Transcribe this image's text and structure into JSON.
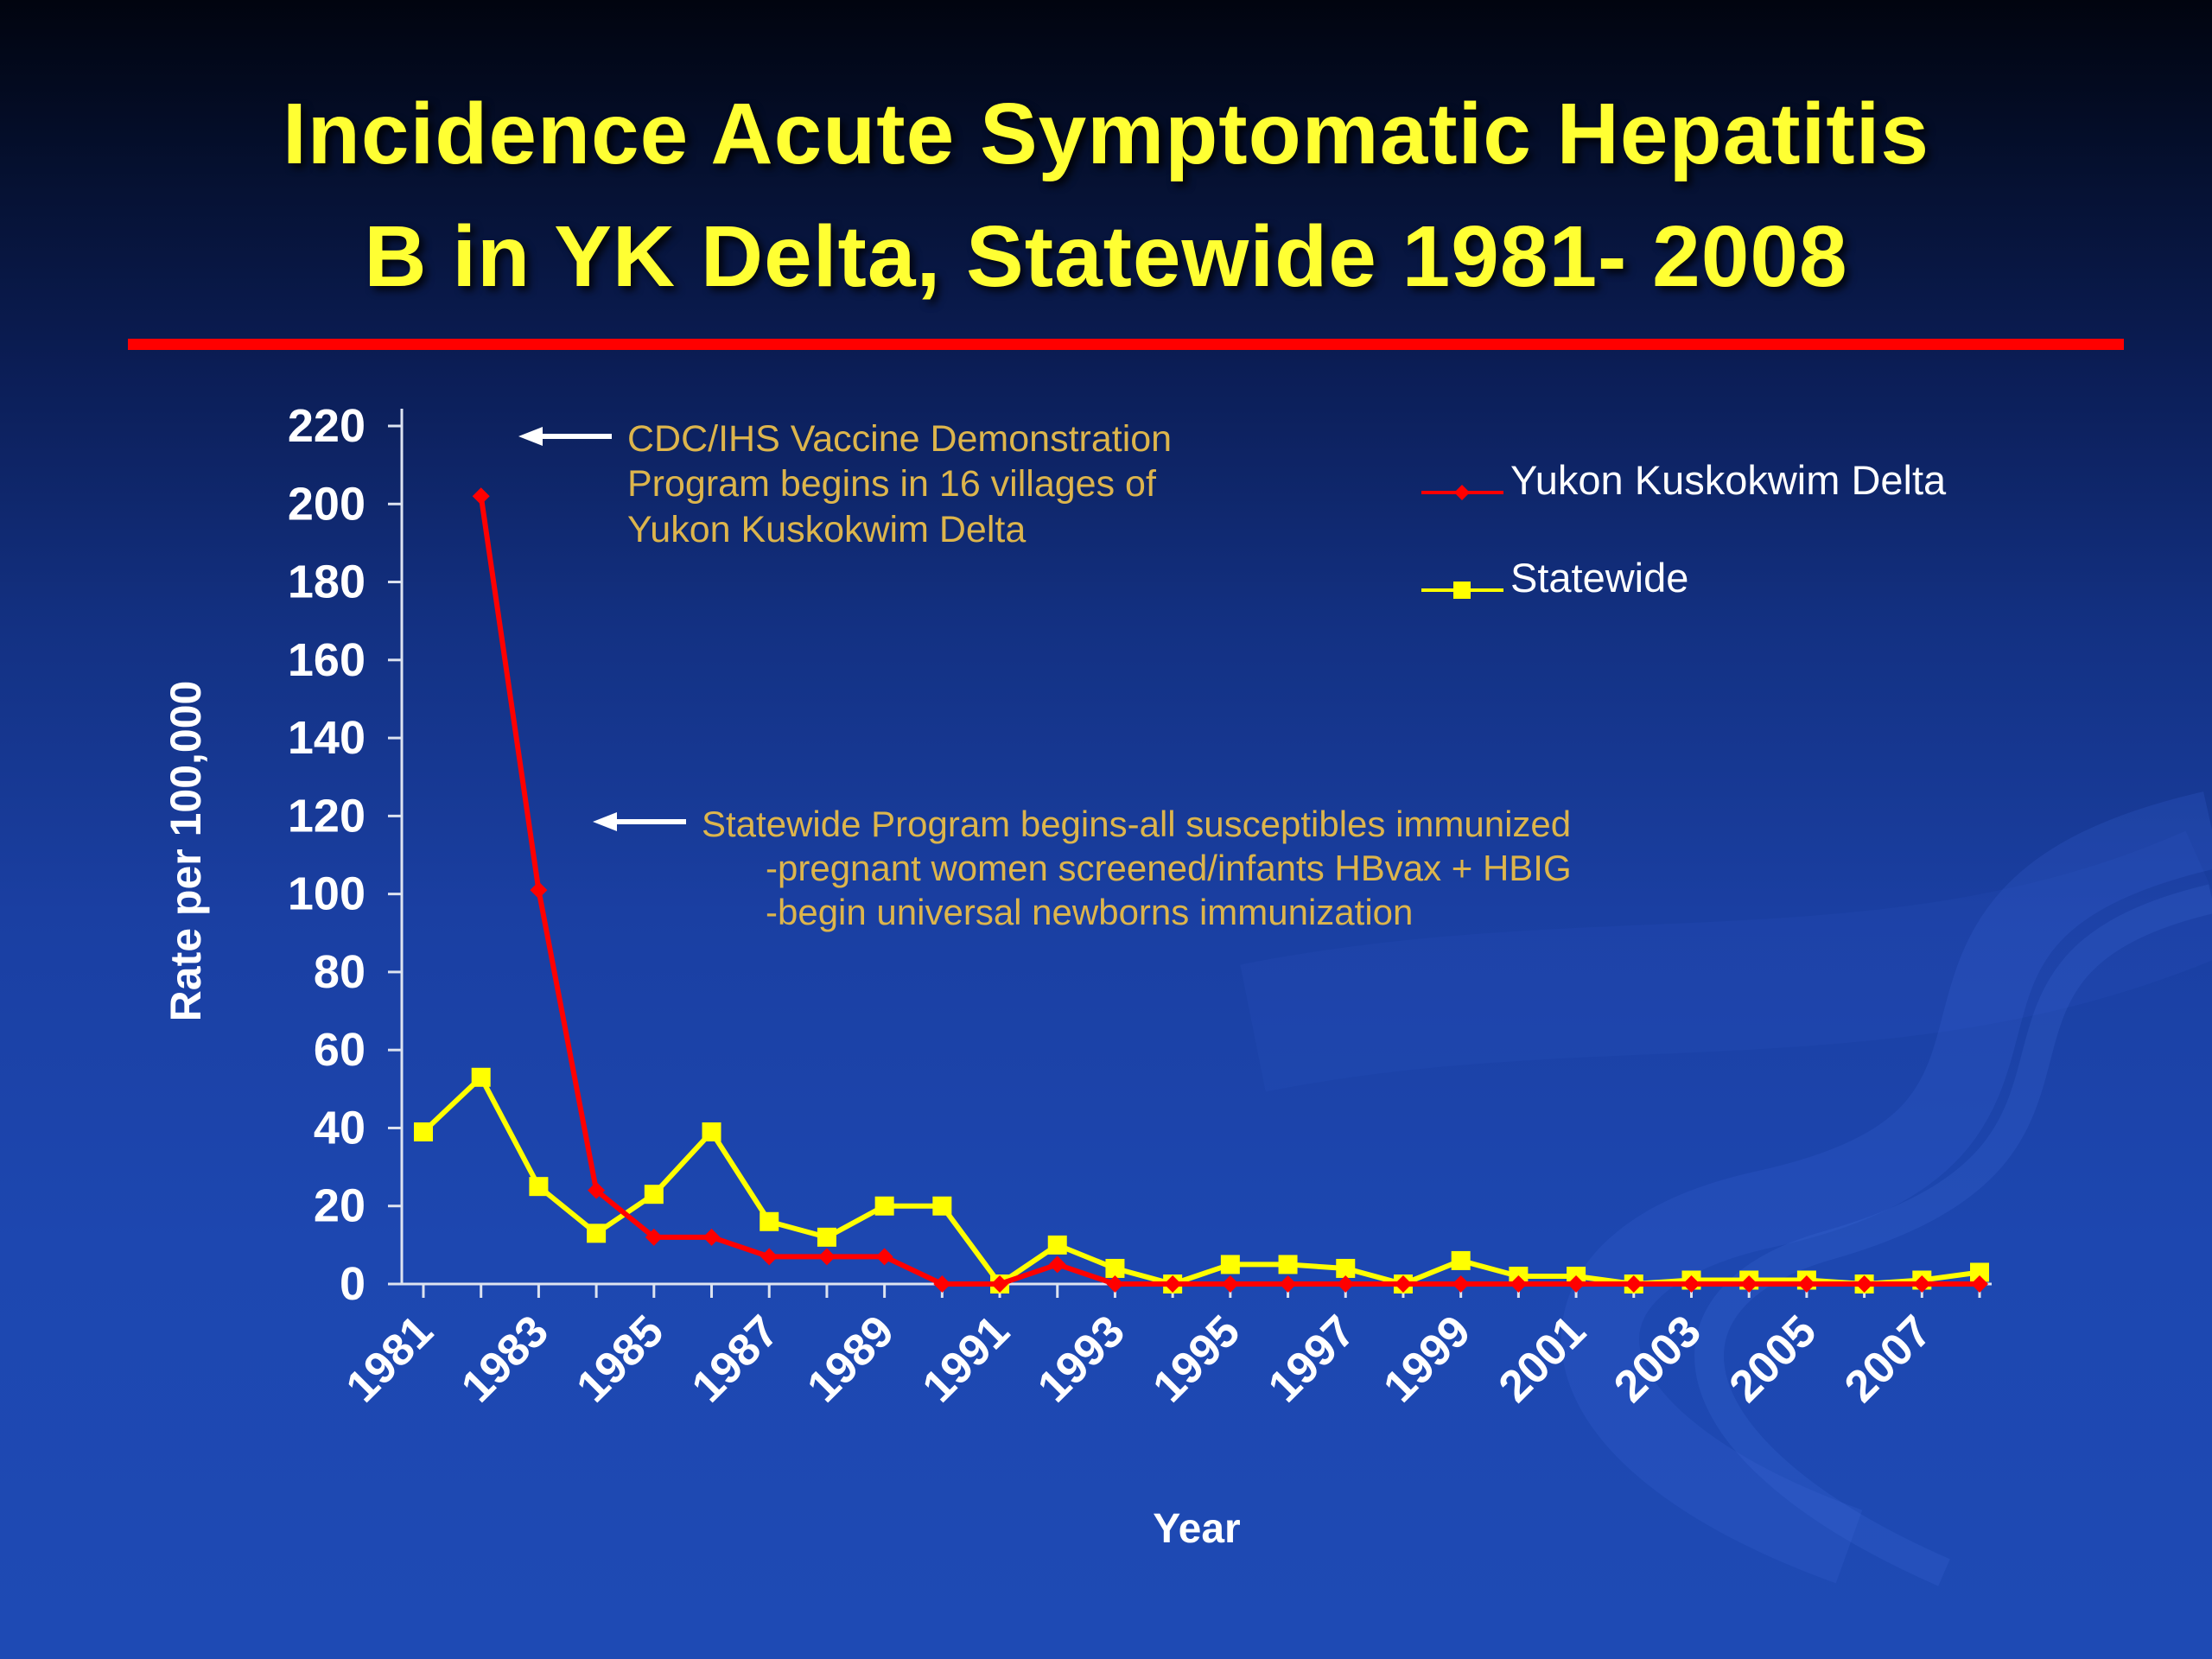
{
  "slide": {
    "title_line1": "Incidence Acute Symptomatic Hepatitis",
    "title_line2": "B in YK Delta, Statewide 1981- 2008"
  },
  "colors": {
    "title": "#ffff33",
    "divider": "#ff0000",
    "annotation": "#ddb54c",
    "axis_text": "#ffffff",
    "axis_line": "#dde3f0",
    "series_ykd": "#ff0000",
    "series_statewide": "#ffff00",
    "legend_text": "#ffffff"
  },
  "chart_data": {
    "type": "line",
    "title": "",
    "xlabel": "Year",
    "ylabel": "Rate per 100,000",
    "ylim": [
      0,
      220
    ],
    "yticks": [
      0,
      20,
      40,
      60,
      80,
      100,
      120,
      140,
      160,
      180,
      200,
      220
    ],
    "xtick_labels": [
      "1981",
      "1983",
      "1985",
      "1987",
      "1989",
      "1991",
      "1993",
      "1995",
      "1997",
      "1999",
      "2001",
      "2003",
      "2005",
      "2007"
    ],
    "years": [
      1981,
      1982,
      1983,
      1984,
      1985,
      1986,
      1987,
      1988,
      1989,
      1990,
      1991,
      1992,
      1993,
      1994,
      1995,
      1996,
      1997,
      1998,
      1999,
      2000,
      2001,
      2002,
      2003,
      2004,
      2005,
      2006,
      2007,
      2008
    ],
    "grid": false,
    "legend_position": "top-right",
    "series": [
      {
        "name": "Yukon Kuskokwim Delta",
        "color": "#ff0000",
        "marker": "diamond",
        "values": [
          null,
          202,
          101,
          24,
          12,
          12,
          7,
          7,
          7,
          0,
          0,
          5,
          0,
          0,
          0,
          0,
          0,
          0,
          0,
          0,
          0,
          0,
          0,
          0,
          0,
          0,
          0,
          0
        ]
      },
      {
        "name": "Statewide",
        "color": "#ffff00",
        "marker": "square",
        "values": [
          39,
          53,
          25,
          13,
          23,
          39,
          16,
          12,
          20,
          20,
          0,
          10,
          4,
          0,
          5,
          5,
          4,
          0,
          6,
          2,
          2,
          0,
          1,
          1,
          1,
          0,
          1,
          3
        ]
      }
    ]
  },
  "annotations": {
    "vaccine_demo": {
      "lines": [
        "CDC/IHS Vaccine Demonstration",
        "Program begins in 16 villages of",
        "Yukon Kuskokwim Delta"
      ]
    },
    "statewide_program": {
      "lines": [
        "Statewide Program begins-all susceptibles immunized",
        "-pregnant women screened/infants HBvax + HBIG",
        "-begin universal newborns immunization"
      ]
    }
  }
}
